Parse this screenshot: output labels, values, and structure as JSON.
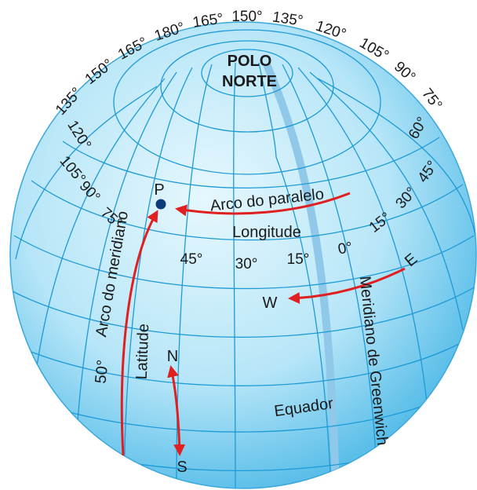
{
  "title_lines": [
    "POLO",
    "NORTE"
  ],
  "top_degrees": [
    "135°",
    "150°",
    "165°",
    "180°",
    "165°",
    "150°",
    "135°",
    "120°",
    "105°",
    "90°",
    "75°"
  ],
  "right_degrees": [
    "60°",
    "45°",
    "30°",
    "15°",
    "0°"
  ],
  "left_degrees": [
    "120°",
    "105°",
    "90°",
    "75°"
  ],
  "parallel_degrees": [
    "45°",
    "30°",
    "15°"
  ],
  "latitude_degree": "50°",
  "labels": {
    "p": "P",
    "arc_parallel": "Arco do paralelo",
    "longitude": "Longitude",
    "arc_meridian": "Arco do meridiano",
    "latitude": "Latitude",
    "greenwich": "Meridiano de Greenwich",
    "equator": "Equador",
    "n": "N",
    "s": "S",
    "e": "E",
    "w": "W"
  },
  "colors": {
    "globe_light": "#e6f7fd",
    "globe_mid": "#9fdcf4",
    "globe_edge": "#4fb8e6",
    "grid": "#1e9ad6",
    "greenwich_band": "#8fc8e8",
    "arrow": "#e02020",
    "point": "#0d3a7a"
  }
}
